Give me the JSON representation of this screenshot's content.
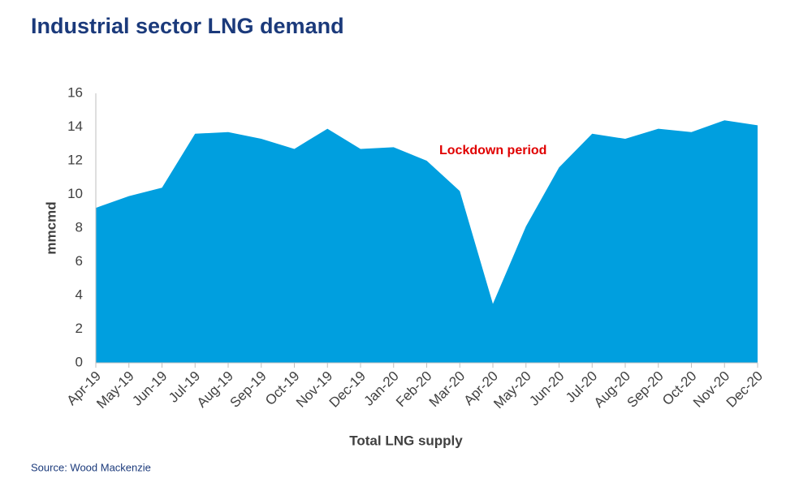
{
  "chart_data": {
    "type": "area",
    "title": "Industrial sector LNG demand",
    "x_label": "Total LNG supply",
    "y_label": "mmcmd",
    "source": "Source: Wood Mackenzie",
    "annotation": "Lockdown period",
    "color": "#009fdf",
    "categories": [
      "Apr-19",
      "May-19",
      "Jun-19",
      "Jul-19",
      "Aug-19",
      "Sep-19",
      "Oct-19",
      "Nov-19",
      "Dec-19",
      "Jan-20",
      "Feb-20",
      "Mar-20",
      "Apr-20",
      "May-20",
      "Jun-20",
      "Jul-20",
      "Aug-20",
      "Sep-20",
      "Oct-20",
      "Nov-20",
      "Dec-20"
    ],
    "values": [
      9.2,
      9.9,
      10.4,
      13.6,
      13.7,
      13.3,
      12.7,
      13.9,
      12.7,
      12.8,
      12.0,
      10.2,
      3.5,
      8.1,
      11.6,
      13.6,
      13.3,
      13.9,
      13.7,
      14.4,
      14.1
    ],
    "ylim": [
      0,
      16
    ],
    "yticks": [
      0,
      2,
      4,
      6,
      8,
      10,
      12,
      14,
      16
    ]
  }
}
